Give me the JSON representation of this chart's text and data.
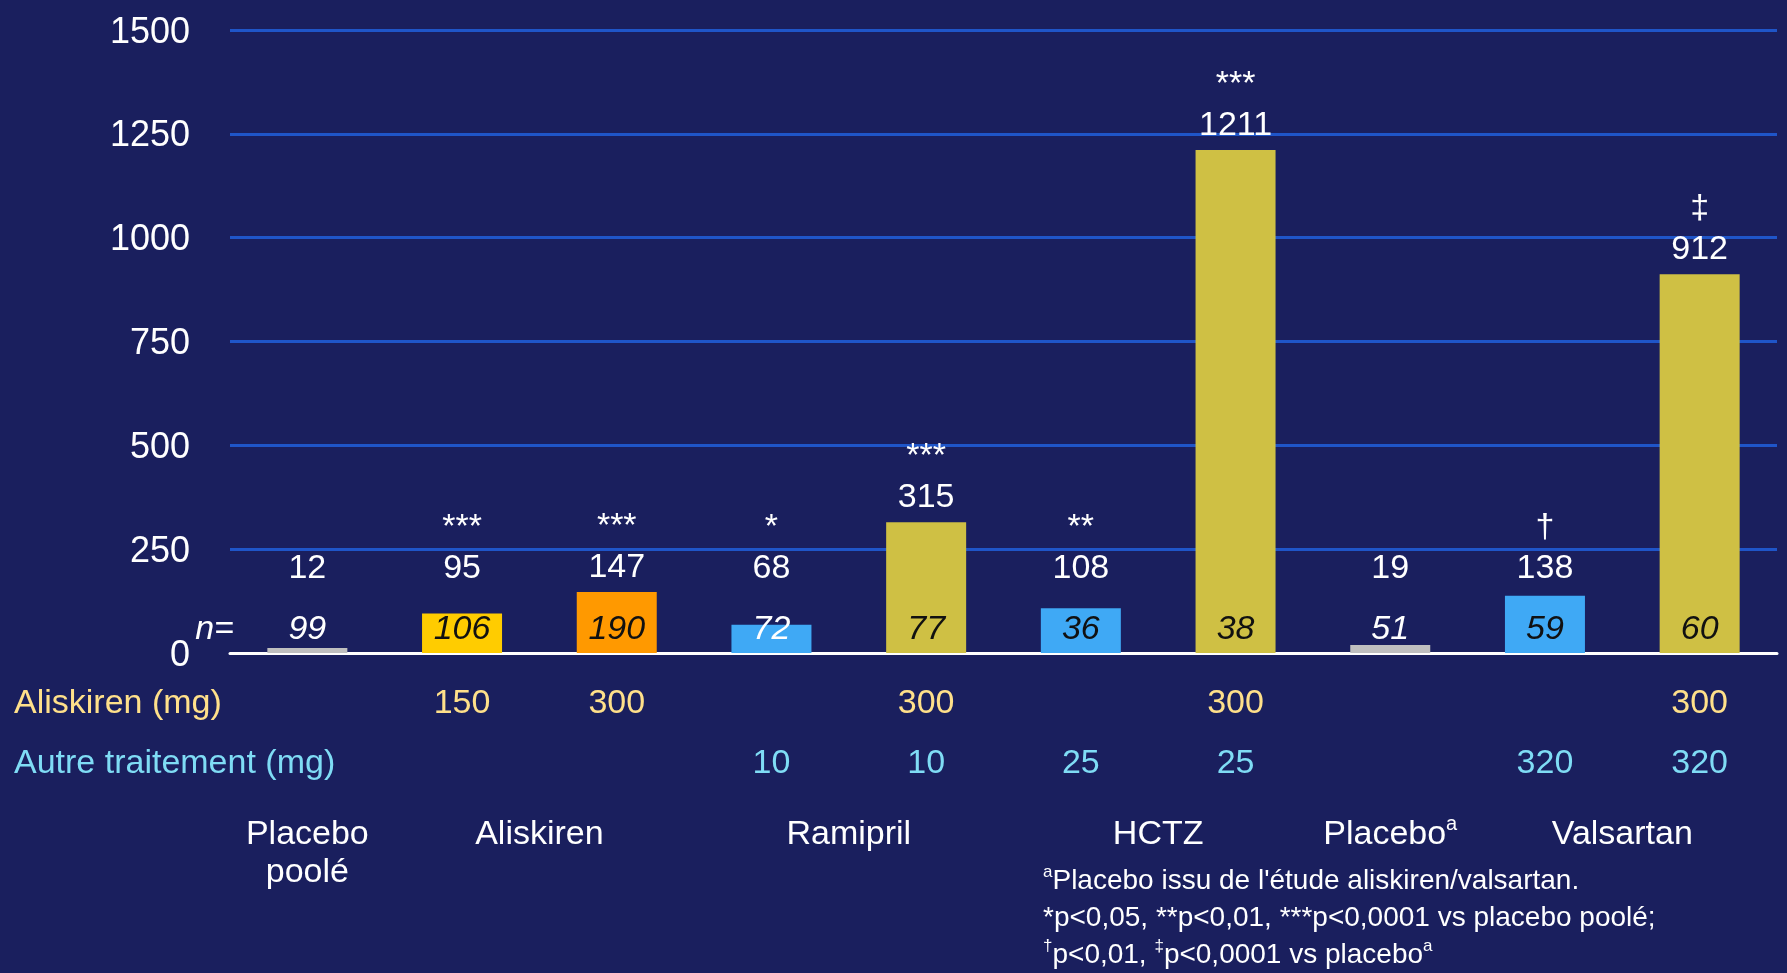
{
  "chart_data": {
    "type": "bar",
    "categories": [
      null,
      null,
      null,
      null,
      null,
      null,
      null,
      null,
      null,
      null
    ],
    "values": [
      12,
      95,
      147,
      68,
      315,
      108,
      1211,
      19,
      138,
      912
    ],
    "colors": [
      "#bfbfbf",
      "#ffcc00",
      "#ff9900",
      "#3fa9f5",
      "#cfc044",
      "#3fa9f5",
      "#cfc044",
      "#bfbfbf",
      "#3fa9f5",
      "#cfc044"
    ],
    "data_labels": true,
    "ylim": [
      0,
      1500
    ],
    "yticks": [
      0,
      250,
      500,
      750,
      1000,
      1250,
      1500
    ],
    "grid": "y",
    "annotations": [
      "n=",
      "99",
      "106",
      "190",
      "72",
      "77",
      "36",
      "38",
      "51",
      "59",
      "60",
      "***",
      "***",
      "*",
      "***",
      "**",
      "***",
      "†",
      "‡",
      "Aliskiren (mg)",
      "150",
      "300",
      "300",
      "300",
      "300",
      "Autre traitement (mg)",
      "10",
      "10",
      "25",
      "25",
      "320",
      "320",
      "Placebo\npoolé",
      "Aliskiren",
      "Ramipril",
      "HCTZ",
      "Placebo$^{a}$",
      "Valsartan",
      "$^{a}$Placebo issu de l'étude aliskiren/valsartan.",
      "*p<0,05, **p<0,01, ***p<0,0001 vs placebo poolé;",
      "$^{†}$p<0,01, $^{‡}$p<0,0001 vs placebo$^{a}$"
    ]
  }
}
